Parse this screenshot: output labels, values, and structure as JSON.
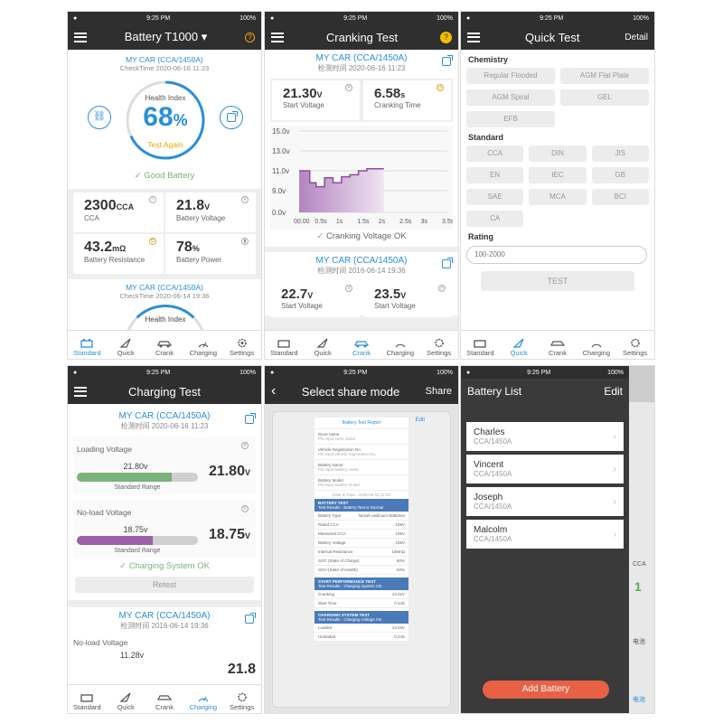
{
  "status": {
    "time": "9:25 PM",
    "battery": "100%"
  },
  "p1": {
    "title": "Battery T1000",
    "car": "MY CAR (CCA/1450A)",
    "check": "CheckTime 2020-06-16 11:23",
    "health_label": "Health Index",
    "health_value": "68",
    "pct": "%",
    "test_again": "Test Again",
    "good": "Good Battery",
    "cca": "2300",
    "cca_unit": "CCA",
    "cca_lbl": "CCA",
    "volt": "21.8",
    "volt_unit": "V",
    "volt_lbl": "Battery Voltage",
    "res": "43.2",
    "res_unit": "mΩ",
    "res_lbl": "Battery Resistance",
    "pow": "78",
    "pow_unit": "%",
    "pow_lbl": "Battery Power",
    "car2": "MY CAR (CCA/1450A)",
    "check2": "CheckTime 2020-06-14 19:36",
    "health2": "Health Index",
    "health_level": 0.68
  },
  "p2": {
    "title": "Cranking Test",
    "car": "MY CAR (CCA/1450A)",
    "check": "检测时间 2020-06-16 11:23",
    "sv": "21.30",
    "sv_u": "V",
    "sv_lbl": "Start Voltage",
    "ct": "6.58",
    "ct_u": "s",
    "ct_lbl": "Cranking Time",
    "ok": "Cranking Voltage OK",
    "car2": "MY CAR (CCA/1450A)",
    "check2": "检测时间 2016-06-14 19:36",
    "v1": "22.7",
    "v1_u": "V",
    "v2": "23.5",
    "v2_u": "V",
    "cut1": "Start Voltage",
    "cut2": "Start Voltage"
  },
  "p3": {
    "title": "Quick Test",
    "detail": "Detail",
    "chem": "Chemistry",
    "chem_opts": [
      "Regular Flooded",
      "AGM Flat Plate",
      "AGM Spiral",
      "GEL",
      "EFB"
    ],
    "std": "Standard",
    "std_opts": [
      "CCA",
      "DIN",
      "JIS",
      "EN",
      "IEC",
      "GB",
      "SAE",
      "MCA",
      "BCI",
      "CA"
    ],
    "rating": "Rating",
    "rating_ph": "100-2000",
    "test": "TEST"
  },
  "p4": {
    "title": "Charging Test",
    "car": "MY CAR (CCA/1450A)",
    "check": "检测时间 2020-06-16 11:23",
    "load_lbl": "Loading Voltage",
    "load_v": "21.80v",
    "load_big": "21.80",
    "u": "V",
    "range": "Standard Range",
    "noload_lbl": "No-load Voltage",
    "noload_v": "18.75v",
    "noload_big": "18.75",
    "ok": "Charging System OK",
    "retest": "Retest",
    "car2": "MY CAR (CCA/1450A)",
    "check2": "检测时间 2016-06-14 19:36",
    "noload2": "No-load Voltage",
    "noload2_v": "11.28v",
    "cut_big": "21.8",
    "load_level": 0.78,
    "noload_level": 0.63
  },
  "p5": {
    "title": "Select share mode",
    "share": "Share",
    "edit": "Edit",
    "report": "Battery Test Report",
    "f1": "Store name",
    "f1p": "Pls input store name",
    "f2": "Vehicle Registration No.",
    "f2p": "Pls input vehicle registration No.",
    "f3": "Battery Name",
    "f3p": "Pls input battery name",
    "f4": "Battery Model",
    "f4p": "Pls input battery model",
    "date": "Date & Time : 2020-06-16 11:23",
    "bt": "BATTERY TEST",
    "bt_s": "Test Results : Battery Test is Normal",
    "rows": [
      [
        "Battery Type",
        "Nickel-cadmium Batteries"
      ],
      [
        "Rated CCA",
        "105V"
      ],
      [
        "Measured CCA",
        "105V"
      ],
      [
        "Battery Voltage",
        "105V"
      ],
      [
        "Internal Resistance",
        "188mΩ"
      ],
      [
        "SOC (State of Charge)",
        "60%"
      ],
      [
        "SOH (State of Health)",
        "60%"
      ]
    ],
    "spt": "START PERFORMANCE TEST",
    "spt_s": "Test Results : Charging System OK",
    "spt_rows": [
      [
        "Cranking",
        "13.02V"
      ],
      [
        "Start Time",
        "0.24S"
      ]
    ],
    "cst": "CHARGING SYSTEM TEST",
    "cst_s": "Test Results : Charging Voltage OK",
    "cst_rows": [
      [
        "Loaded",
        "13.03V"
      ],
      [
        "Unloaded",
        "0.24S"
      ]
    ]
  },
  "p6": {
    "title": "Battery List",
    "edit": "Edit",
    "items": [
      {
        "name": "Charles",
        "sub": "CCA/1450A"
      },
      {
        "name": "Vincent",
        "sub": "CCA/1450A"
      },
      {
        "name": "Joseph",
        "sub": "CCA/1450A"
      },
      {
        "name": "Malcolm",
        "sub": "CCA/1450A"
      }
    ],
    "add": "Add Battery",
    "bg_cca": "CCA",
    "bg_1": "1",
    "bg_cn": "电池",
    "bg_cn2": "电池"
  },
  "nav": [
    "Standard",
    "Quick",
    "Crank",
    "Charging",
    "Settings"
  ],
  "chart_data": {
    "type": "line",
    "y_ticks": [
      "15.0v",
      "13.0v",
      "11.0v",
      "9.0v",
      "0.0v"
    ],
    "x_ticks": [
      "00:00",
      "0.5s",
      "1s",
      "1.5s",
      "2s",
      "2.5s",
      "3s",
      "3.5s"
    ],
    "x": [
      0,
      0.25,
      0.4,
      0.6,
      0.8,
      1.0,
      1.2,
      1.4,
      1.6,
      1.8,
      2.0
    ],
    "y": [
      11.0,
      9.8,
      9.4,
      10.3,
      9.8,
      10.4,
      10.6,
      11.0,
      11.2,
      11.2,
      11.2
    ],
    "ylim": [
      0,
      15
    ],
    "xlim": [
      0,
      3.5
    ]
  },
  "colors": {
    "accent": "#2a8fd8",
    "orange": "#e86145",
    "green": "#7bb27b",
    "purple": "#9c5fa8"
  }
}
